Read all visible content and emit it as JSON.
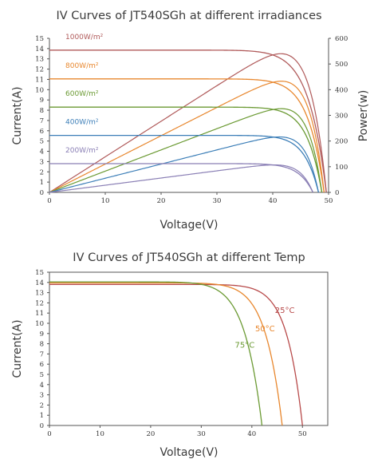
{
  "chart_data": [
    {
      "type": "line",
      "title": "IV Curves of JT540SGh at different irradiances",
      "xlabel": "Voltage(V)",
      "ylabel": "Current(A)",
      "y2label": "Power(w)",
      "xlim": [
        0,
        50
      ],
      "ylim": [
        0,
        15
      ],
      "y2lim": [
        0,
        600
      ],
      "xticks": [
        0,
        10,
        20,
        30,
        40,
        50
      ],
      "yticks": [
        0,
        1,
        2,
        3,
        4,
        5,
        6,
        7,
        8,
        9,
        10,
        11,
        12,
        13,
        14,
        15
      ],
      "y2ticks": [
        0,
        100,
        200,
        300,
        400,
        500,
        600
      ],
      "grid": false,
      "series": [
        {
          "name": "1000W/m²",
          "color": "#b05a5a",
          "isc": 13.85,
          "voc": 49.6,
          "vmp": 41.2,
          "imp": 13.1,
          "pmax": 540
        },
        {
          "name": "800W/m²",
          "color": "#e8872e",
          "isc": 11.05,
          "voc": 49.2,
          "vmp": 41.3,
          "imp": 10.5,
          "pmax": 433
        },
        {
          "name": "600W/m²",
          "color": "#6b9a33",
          "isc": 8.3,
          "voc": 48.8,
          "vmp": 41.4,
          "imp": 7.9,
          "pmax": 326
        },
        {
          "name": "400W/m²",
          "color": "#3d7fb8",
          "isc": 5.55,
          "voc": 48.2,
          "vmp": 41.0,
          "imp": 5.3,
          "pmax": 216
        },
        {
          "name": "200W/m²",
          "color": "#8a7fb5",
          "isc": 2.8,
          "voc": 47.2,
          "vmp": 40.4,
          "imp": 2.65,
          "pmax": 107
        }
      ]
    },
    {
      "type": "line",
      "title": "IV Curves of JT540SGh at different Temp",
      "xlabel": "Voltage(V)",
      "ylabel": "Current(A)",
      "xlim": [
        0,
        55
      ],
      "ylim": [
        0,
        15
      ],
      "xticks": [
        0,
        10,
        20,
        30,
        40,
        50
      ],
      "yticks": [
        0,
        1,
        2,
        3,
        4,
        5,
        6,
        7,
        8,
        9,
        10,
        11,
        12,
        13,
        14,
        15
      ],
      "grid": false,
      "series": [
        {
          "name": "25°C",
          "color": "#b84a4a",
          "isc": 13.8,
          "voc": 50.0,
          "vmp": 41.5,
          "imp": 13.1
        },
        {
          "name": "50°C",
          "color": "#e8872e",
          "isc": 13.95,
          "voc": 46.0,
          "vmp": 37.2,
          "imp": 13.2
        },
        {
          "name": "75°C",
          "color": "#6b9a33",
          "isc": 14.05,
          "voc": 42.0,
          "vmp": 33.0,
          "imp": 13.3
        }
      ]
    }
  ]
}
